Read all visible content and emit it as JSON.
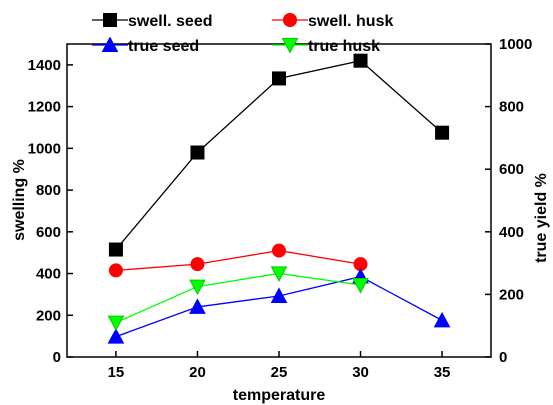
{
  "chart_data": {
    "type": "line",
    "title": "",
    "xlabel": "temperature",
    "ylabel": "swelling %",
    "y2label": "true yield %",
    "x_ticks": [
      15,
      20,
      25,
      30,
      35
    ],
    "xlim": [
      12,
      38
    ],
    "ylim": [
      0,
      1500
    ],
    "y_ticks": [
      0,
      200,
      400,
      600,
      800,
      1000,
      1200,
      1400
    ],
    "y2lim": [
      0,
      1000
    ],
    "y2_ticks": [
      0,
      200,
      400,
      600,
      800,
      1000
    ],
    "grid": false,
    "legend_position": "top",
    "series": [
      {
        "name": "swell. seed",
        "axis": "left",
        "color": "#000000",
        "marker": "square",
        "x": [
          15,
          20,
          25,
          30,
          35
        ],
        "values": [
          515,
          980,
          1335,
          1420,
          1075
        ]
      },
      {
        "name": "swell. husk",
        "axis": "left",
        "color": "#ff0000",
        "marker": "circle",
        "x": [
          15,
          20,
          25,
          30
        ],
        "values": [
          415,
          445,
          510,
          445
        ]
      },
      {
        "name": "true seed",
        "axis": "right",
        "color": "#0000ff",
        "marker": "triangle-up",
        "x": [
          15,
          20,
          25,
          30,
          35
        ],
        "values": [
          65,
          160,
          195,
          257,
          117
        ]
      },
      {
        "name": "true husk",
        "axis": "right",
        "color": "#00ff00",
        "marker": "triangle-down",
        "x": [
          15,
          20,
          25,
          30
        ],
        "values": [
          110,
          225,
          267,
          230
        ]
      }
    ]
  }
}
